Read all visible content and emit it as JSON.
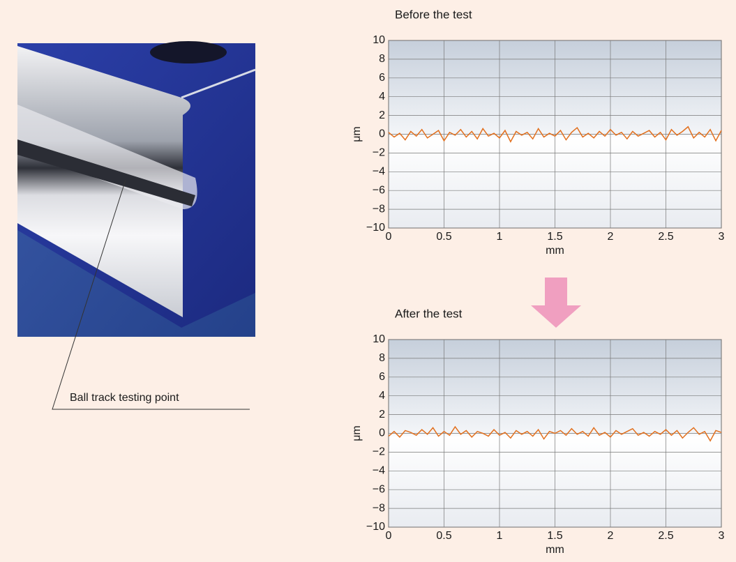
{
  "figure": {
    "label": "Ball track testing point"
  },
  "chart_data": [
    {
      "type": "line",
      "title": "Before the test",
      "xlabel": "mm",
      "ylabel": "μm",
      "color": "#e2701e",
      "grid": true,
      "xlim": [
        0,
        3
      ],
      "ylim": [
        -10,
        10
      ],
      "xticks": [
        0,
        0.5,
        1,
        1.5,
        2,
        2.5,
        3
      ],
      "yticks": [
        {
          "value": -10,
          "label": "−10"
        },
        {
          "value": -8,
          "label": "−8"
        },
        {
          "value": -6,
          "label": "−6"
        },
        {
          "value": -4,
          "label": "−4"
        },
        {
          "value": -2,
          "label": "−2"
        },
        0,
        2,
        4,
        6,
        8,
        10
      ],
      "x": [
        0,
        0.05,
        0.1,
        0.15,
        0.2,
        0.25,
        0.3,
        0.35,
        0.4,
        0.45,
        0.5,
        0.55,
        0.6,
        0.65,
        0.7,
        0.75,
        0.8,
        0.85,
        0.9,
        0.95,
        1,
        1.05,
        1.1,
        1.15,
        1.2,
        1.25,
        1.3,
        1.35,
        1.4,
        1.45,
        1.5,
        1.55,
        1.6,
        1.65,
        1.7,
        1.75,
        1.8,
        1.85,
        1.9,
        1.95,
        2,
        2.05,
        2.1,
        2.15,
        2.2,
        2.25,
        2.3,
        2.35,
        2.4,
        2.45,
        2.5,
        2.55,
        2.6,
        2.65,
        2.7,
        2.75,
        2.8,
        2.85,
        2.9,
        2.95,
        3
      ],
      "values": [
        0.2,
        -0.3,
        0.1,
        -0.6,
        0.3,
        -0.2,
        0.5,
        -0.4,
        0.0,
        0.4,
        -0.7,
        0.2,
        -0.1,
        0.5,
        -0.3,
        0.3,
        -0.5,
        0.6,
        -0.2,
        0.1,
        -0.4,
        0.4,
        -0.8,
        0.3,
        -0.1,
        0.2,
        -0.5,
        0.6,
        -0.3,
        0.1,
        -0.2,
        0.4,
        -0.6,
        0.2,
        0.7,
        -0.3,
        0.1,
        -0.4,
        0.3,
        -0.2,
        0.5,
        -0.1,
        0.2,
        -0.5,
        0.3,
        -0.2,
        0.1,
        0.4,
        -0.3,
        0.2,
        -0.6,
        0.5,
        -0.1,
        0.3,
        0.8,
        -0.4,
        0.2,
        -0.3,
        0.5,
        -0.7,
        0.4
      ]
    },
    {
      "type": "line",
      "title": "After the test",
      "xlabel": "mm",
      "ylabel": "μm",
      "color": "#e2701e",
      "grid": true,
      "xlim": [
        0,
        3
      ],
      "ylim": [
        -10,
        10
      ],
      "xticks": [
        0,
        0.5,
        1,
        1.5,
        2,
        2.5,
        3
      ],
      "yticks": [
        {
          "value": -10,
          "label": "−10"
        },
        {
          "value": -8,
          "label": "−8"
        },
        {
          "value": -6,
          "label": "−6"
        },
        {
          "value": -4,
          "label": "−4"
        },
        {
          "value": -2,
          "label": "−2"
        },
        0,
        2,
        4,
        6,
        8,
        10
      ],
      "x": [
        0,
        0.05,
        0.1,
        0.15,
        0.2,
        0.25,
        0.3,
        0.35,
        0.4,
        0.45,
        0.5,
        0.55,
        0.6,
        0.65,
        0.7,
        0.75,
        0.8,
        0.85,
        0.9,
        0.95,
        1,
        1.05,
        1.1,
        1.15,
        1.2,
        1.25,
        1.3,
        1.35,
        1.4,
        1.45,
        1.5,
        1.55,
        1.6,
        1.65,
        1.7,
        1.75,
        1.8,
        1.85,
        1.9,
        1.95,
        2,
        2.05,
        2.1,
        2.15,
        2.2,
        2.25,
        2.3,
        2.35,
        2.4,
        2.45,
        2.5,
        2.55,
        2.6,
        2.65,
        2.7,
        2.75,
        2.8,
        2.85,
        2.9,
        2.95,
        3
      ],
      "values": [
        -0.3,
        0.2,
        -0.4,
        0.3,
        0.1,
        -0.2,
        0.4,
        -0.1,
        0.6,
        -0.3,
        0.2,
        -0.2,
        0.7,
        -0.1,
        0.3,
        -0.4,
        0.2,
        0.0,
        -0.3,
        0.4,
        -0.2,
        0.1,
        -0.5,
        0.3,
        -0.1,
        0.2,
        -0.3,
        0.4,
        -0.6,
        0.2,
        0.0,
        0.3,
        -0.2,
        0.5,
        -0.1,
        0.2,
        -0.3,
        0.6,
        -0.2,
        0.1,
        -0.4,
        0.3,
        -0.1,
        0.2,
        0.5,
        -0.2,
        0.1,
        -0.3,
        0.2,
        -0.1,
        0.4,
        -0.2,
        0.3,
        -0.5,
        0.1,
        0.6,
        -0.1,
        0.2,
        -0.8,
        0.3,
        0.1
      ]
    }
  ]
}
